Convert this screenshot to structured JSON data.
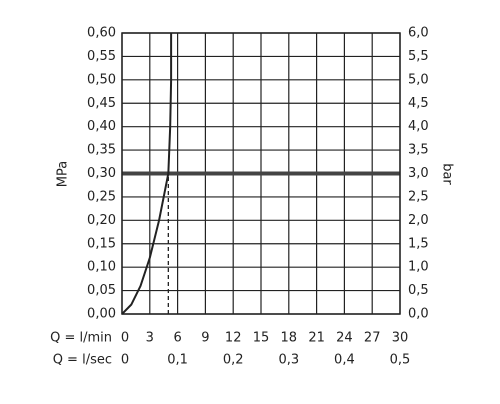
{
  "chart_data": {
    "type": "line",
    "ylabel": "MPa",
    "y2label": "bar",
    "xlabel": "Q = l/min",
    "x2label": "Q = l/sec",
    "xlim": [
      0,
      30
    ],
    "xticks": [
      0,
      3,
      6,
      9,
      12,
      15,
      18,
      21,
      24,
      27,
      30
    ],
    "x2lim": [
      0,
      0.5
    ],
    "x2ticks": [
      0,
      {
        "value": 0.1,
        "label": "0,1"
      },
      {
        "value": 0.2,
        "label": "0,2"
      },
      {
        "value": 0.3,
        "label": "0,3"
      },
      {
        "value": 0.4,
        "label": "0,4"
      },
      {
        "value": 0.5,
        "label": "0,5"
      }
    ],
    "ylim": [
      0,
      0.6
    ],
    "yticks": [
      {
        "value": 0,
        "label": "0,00"
      },
      {
        "value": 0.05,
        "label": "0,05"
      },
      {
        "value": 0.1,
        "label": "0,10"
      },
      {
        "value": 0.15,
        "label": "0,15"
      },
      {
        "value": 0.2,
        "label": "0,20"
      },
      {
        "value": 0.25,
        "label": "0,25"
      },
      {
        "value": 0.3,
        "label": "0,30"
      },
      {
        "value": 0.35,
        "label": "0,35"
      },
      {
        "value": 0.4,
        "label": "0,40"
      },
      {
        "value": 0.45,
        "label": "0,45"
      },
      {
        "value": 0.5,
        "label": "0,50"
      },
      {
        "value": 0.55,
        "label": "0,55"
      },
      {
        "value": 0.6,
        "label": "0,60"
      }
    ],
    "y2lim": [
      0,
      6
    ],
    "y2ticks": [
      {
        "value": 0,
        "label": "0,0"
      },
      {
        "value": 0.5,
        "label": "0,5"
      },
      {
        "value": 1,
        "label": "1,0"
      },
      {
        "value": 1.5,
        "label": "1,5"
      },
      {
        "value": 2,
        "label": "2,0"
      },
      {
        "value": 2.5,
        "label": "2,5"
      },
      {
        "value": 3,
        "label": "3,0"
      },
      {
        "value": 3.5,
        "label": "3,5"
      },
      {
        "value": 4,
        "label": "4,0"
      },
      {
        "value": 4.5,
        "label": "4,5"
      },
      {
        "value": 5,
        "label": "5,0"
      },
      {
        "value": 5.5,
        "label": "5,5"
      },
      {
        "value": 6,
        "label": "6,0"
      }
    ],
    "grid": true,
    "series": [
      {
        "color": "#222222",
        "x": [
          0,
          1,
          2,
          3,
          4,
          4.5,
          5,
          5.2,
          5.3,
          5.3
        ],
        "values": [
          0,
          0.02,
          0.06,
          0.12,
          0.2,
          0.25,
          0.3,
          0.4,
          0.5,
          0.6
        ]
      }
    ],
    "reference_y": 0.3,
    "reference_x": 5
  }
}
